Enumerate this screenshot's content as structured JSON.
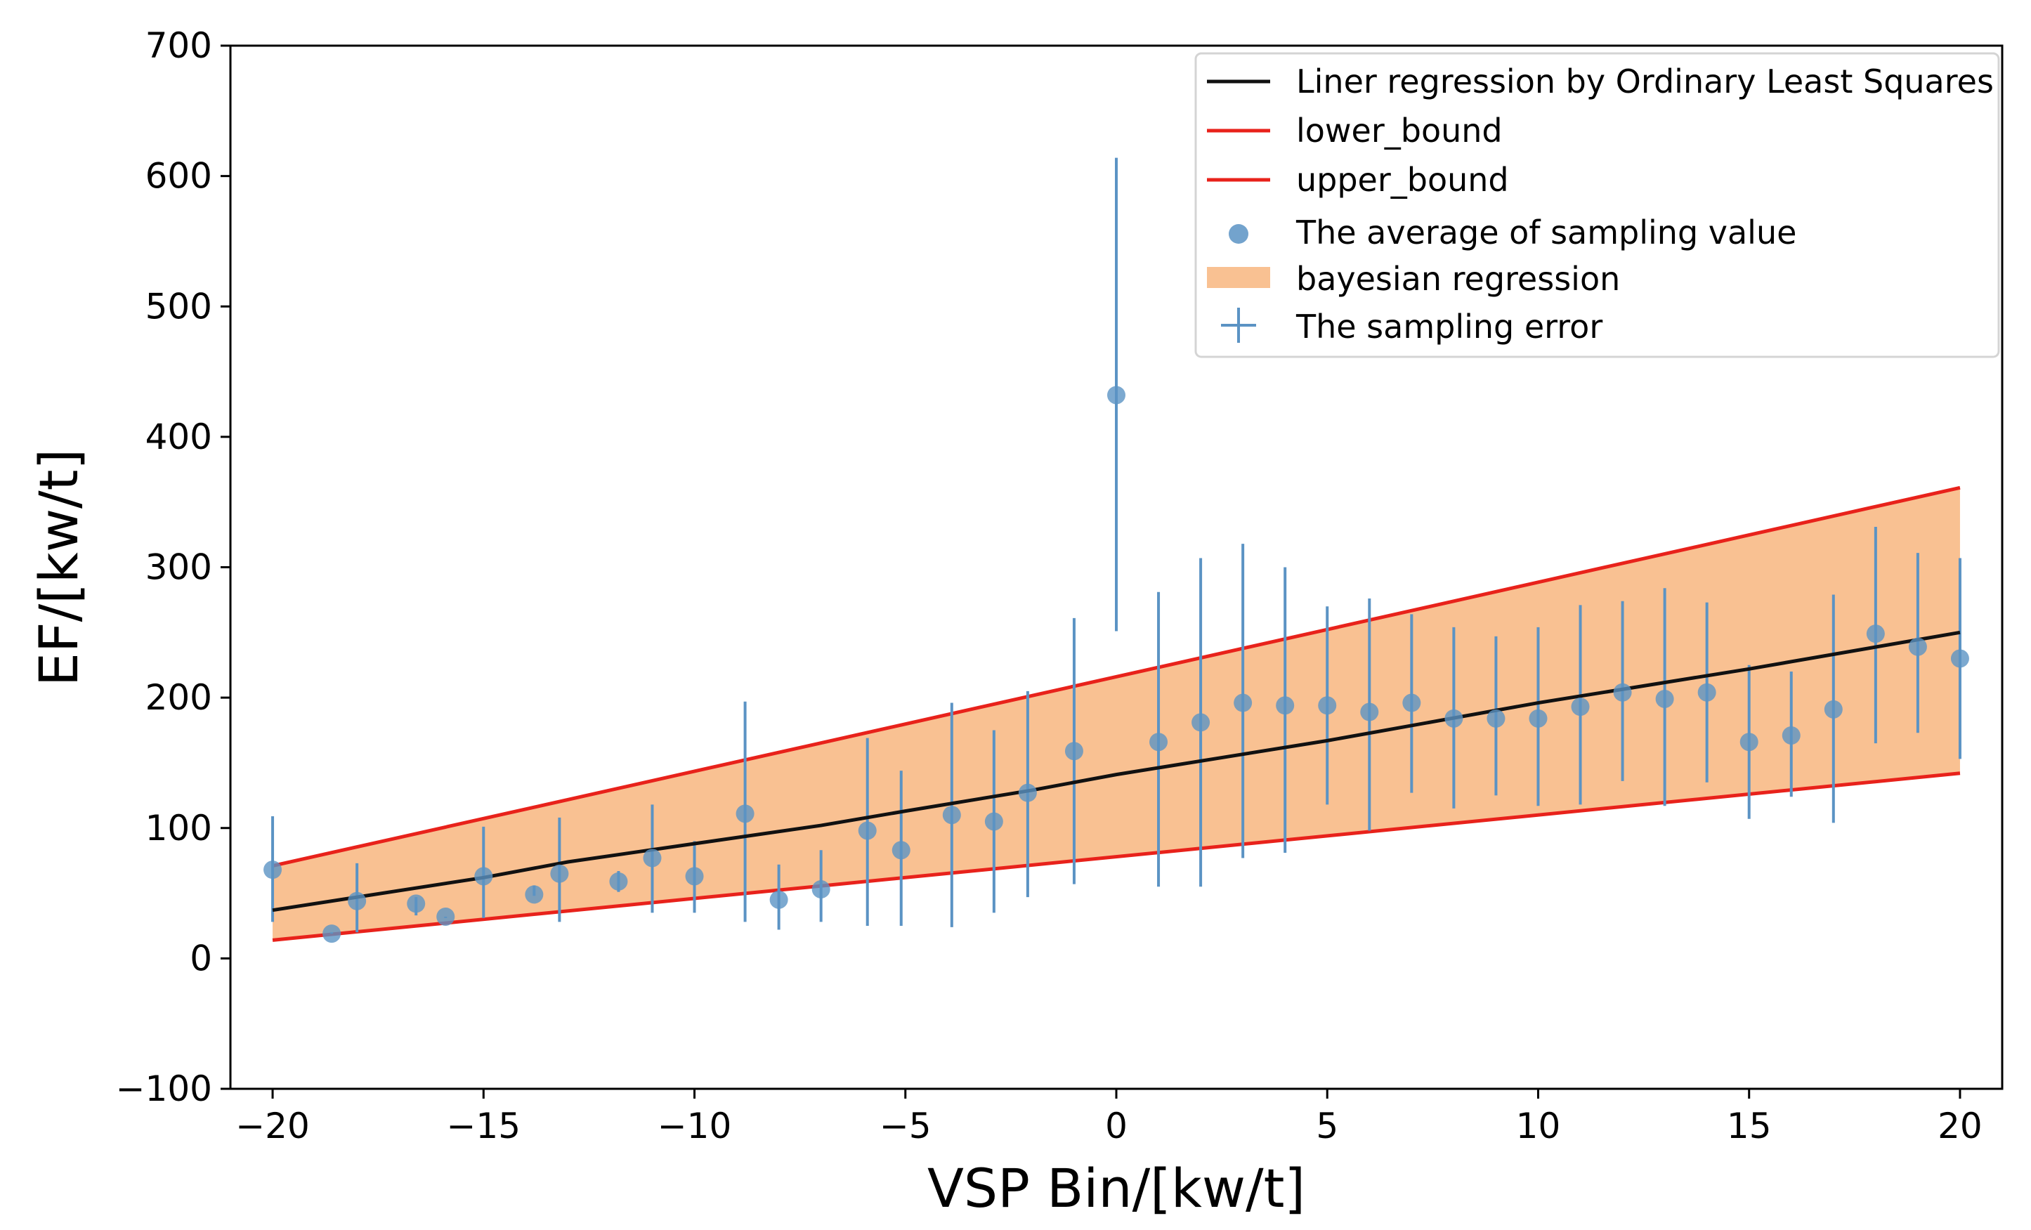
{
  "chart_data": {
    "type": "scatter",
    "xlabel": "VSP Bin/[kw/t]",
    "ylabel": "EF/[kw/t]",
    "xlim": [
      -21,
      21
    ],
    "ylim": [
      -100,
      700
    ],
    "xticks": [
      -20,
      -15,
      -10,
      -5,
      0,
      5,
      10,
      15,
      20
    ],
    "yticks": [
      -100,
      0,
      100,
      200,
      300,
      400,
      500,
      600,
      700
    ],
    "xtick_labels": [
      "−20",
      "−15",
      "−10",
      "−5",
      "0",
      "5",
      "10",
      "15",
      "20"
    ],
    "ytick_labels": [
      "−100",
      "0",
      "100",
      "200",
      "300",
      "400",
      "500",
      "600",
      "700"
    ],
    "grid": false,
    "legend_position": "top-right",
    "legend": [
      {
        "label": "Liner regression by Ordinary Least Squares",
        "kind": "line",
        "color": "#111111"
      },
      {
        "label": "lower_bound",
        "kind": "line",
        "color": "#e8221b"
      },
      {
        "label": "upper_bound",
        "kind": "line",
        "color": "#e8221b"
      },
      {
        "label": "The average of sampling value",
        "kind": "marker",
        "color": "#5b93c4"
      },
      {
        "label": "bayesian regression",
        "kind": "patch",
        "color": "#f9c192"
      },
      {
        "label": "The sampling error",
        "kind": "errorbar",
        "color": "#5b93c4"
      }
    ],
    "ols_line": {
      "x": [
        -20,
        -18,
        -15,
        -13,
        -10,
        -7,
        -5,
        -2,
        0,
        5,
        10,
        15,
        20
      ],
      "y": [
        37,
        47,
        62,
        74,
        88,
        102,
        113,
        129,
        141,
        167,
        196,
        222,
        250
      ]
    },
    "lower_bound": {
      "x": [
        -20,
        20
      ],
      "y": [
        14,
        142
      ]
    },
    "upper_bound": {
      "x": [
        -20,
        20
      ],
      "y": [
        71,
        361
      ]
    },
    "bayesian_band": {
      "x": [
        -20,
        20
      ],
      "lower": [
        14,
        142
      ],
      "upper": [
        71,
        361
      ]
    },
    "sampling_mean": {
      "x": [
        -20,
        -18.6,
        -18,
        -16.6,
        -15.9,
        -15,
        -13.8,
        -13.2,
        -11.8,
        -11,
        -10,
        -8.8,
        -8,
        -7,
        -5.9,
        -5.1,
        -3.9,
        -2.9,
        -2.1,
        -1,
        0,
        1,
        2,
        3,
        4,
        5,
        6,
        7,
        8,
        9,
        10,
        11,
        12,
        13,
        14,
        15,
        16,
        17,
        18,
        19,
        20
      ],
      "y": [
        68,
        19,
        44,
        42,
        32,
        63,
        49,
        65,
        59,
        77,
        63,
        111,
        45,
        53,
        98,
        83,
        110,
        105,
        127,
        159,
        432,
        166,
        181,
        196,
        194,
        194,
        189,
        196,
        184,
        184,
        184,
        193,
        204,
        199,
        204,
        166,
        171,
        191,
        249,
        239,
        230
      ],
      "err_low": [
        28,
        19,
        20,
        33,
        31,
        31,
        48,
        28,
        51,
        35,
        35,
        28,
        22,
        28,
        25,
        25,
        24,
        35,
        47,
        57,
        251,
        55,
        55,
        77,
        81,
        118,
        98,
        127,
        115,
        125,
        117,
        118,
        136,
        117,
        135,
        107,
        124,
        104,
        165,
        173,
        153
      ],
      "err_high": [
        109,
        20,
        73,
        47,
        32,
        101,
        56,
        108,
        67,
        118,
        90,
        197,
        72,
        83,
        169,
        144,
        196,
        175,
        205,
        261,
        614,
        281,
        307,
        318,
        300,
        270,
        276,
        264,
        254,
        247,
        254,
        271,
        274,
        284,
        273,
        225,
        220,
        279,
        331,
        311,
        307
      ]
    }
  }
}
